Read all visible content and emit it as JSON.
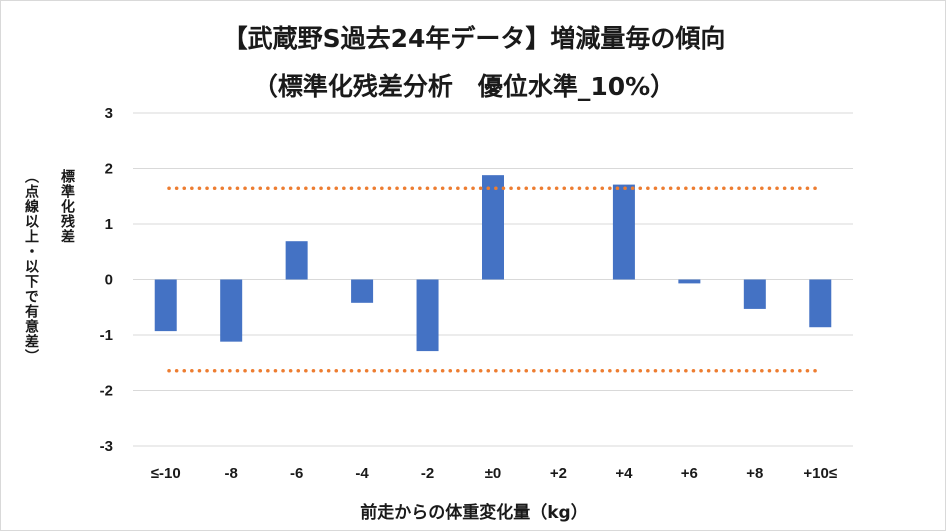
{
  "chart_data": {
    "type": "bar",
    "title": "【武蔵野S過去24年データ】増減量毎の傾向",
    "subtitle": "（標準化残差分析　優位水準_10%）",
    "ylabel_line1": "標準化残差",
    "ylabel_line2": "（点線以上・以下で有意差）",
    "xlabel": "前走からの体重変化量（kg）",
    "categories": [
      "≤-10",
      "-8",
      "-6",
      "-4",
      "-2",
      "±0",
      "+2",
      "+4",
      "+6",
      "+8",
      "+10≤"
    ],
    "values": [
      -0.93,
      -1.12,
      0.69,
      -0.42,
      -1.29,
      1.88,
      0.0,
      1.71,
      -0.07,
      -0.53,
      -0.86
    ],
    "ylim": [
      -3,
      3
    ],
    "yticks": [
      "-3",
      "-2",
      "-1",
      "0",
      "1",
      "2",
      "3"
    ],
    "threshold_lines": [
      1.645,
      -1.645
    ],
    "grid": true,
    "legend": "none",
    "colors": {
      "bar": "#4472C4",
      "threshold": "#ED7D31",
      "grid": "#d9d9d9"
    }
  }
}
